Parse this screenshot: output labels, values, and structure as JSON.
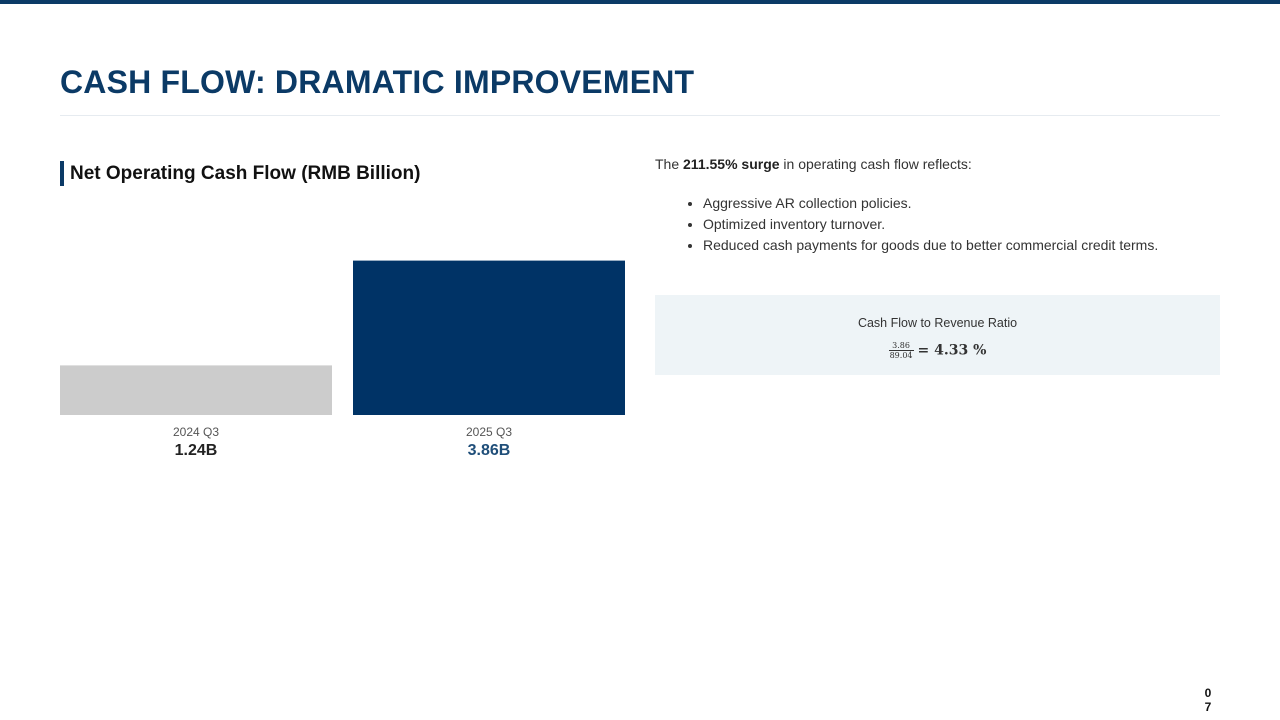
{
  "slide": {
    "title": "CASH FLOW: DRAMATIC IMPROVEMENT",
    "page_digits": [
      "0",
      "7"
    ]
  },
  "chart_data": {
    "type": "bar",
    "title": "Net Operating Cash Flow (RMB Billion)",
    "categories": [
      "2024 Q3",
      "2025 Q3"
    ],
    "values": [
      1.24,
      3.86
    ],
    "value_labels": [
      "1.24B",
      "3.86B"
    ],
    "colors": [
      "#cccccc",
      "#003366"
    ],
    "value_label_colors": [
      "#222222",
      "#1f4e79"
    ],
    "ylim": [
      0,
      4.5
    ],
    "grid": false,
    "legend": "none"
  },
  "analysis": {
    "intro_prefix": "The",
    "intro_bold": "211.55% surge",
    "intro_suffix": "in operating cash flow reflects:",
    "bullets": [
      "Aggressive AR collection policies.",
      "Optimized inventory turnover.",
      "Reduced cash payments for goods due to better commercial credit terms."
    ]
  },
  "ratio": {
    "title": "Cash Flow to Revenue Ratio",
    "numerator": "3.86",
    "denominator": "89.04",
    "result": "= 4.33 %"
  },
  "colors": {
    "accent": "#0b3a66",
    "panel_bg": "#eef4f7"
  }
}
